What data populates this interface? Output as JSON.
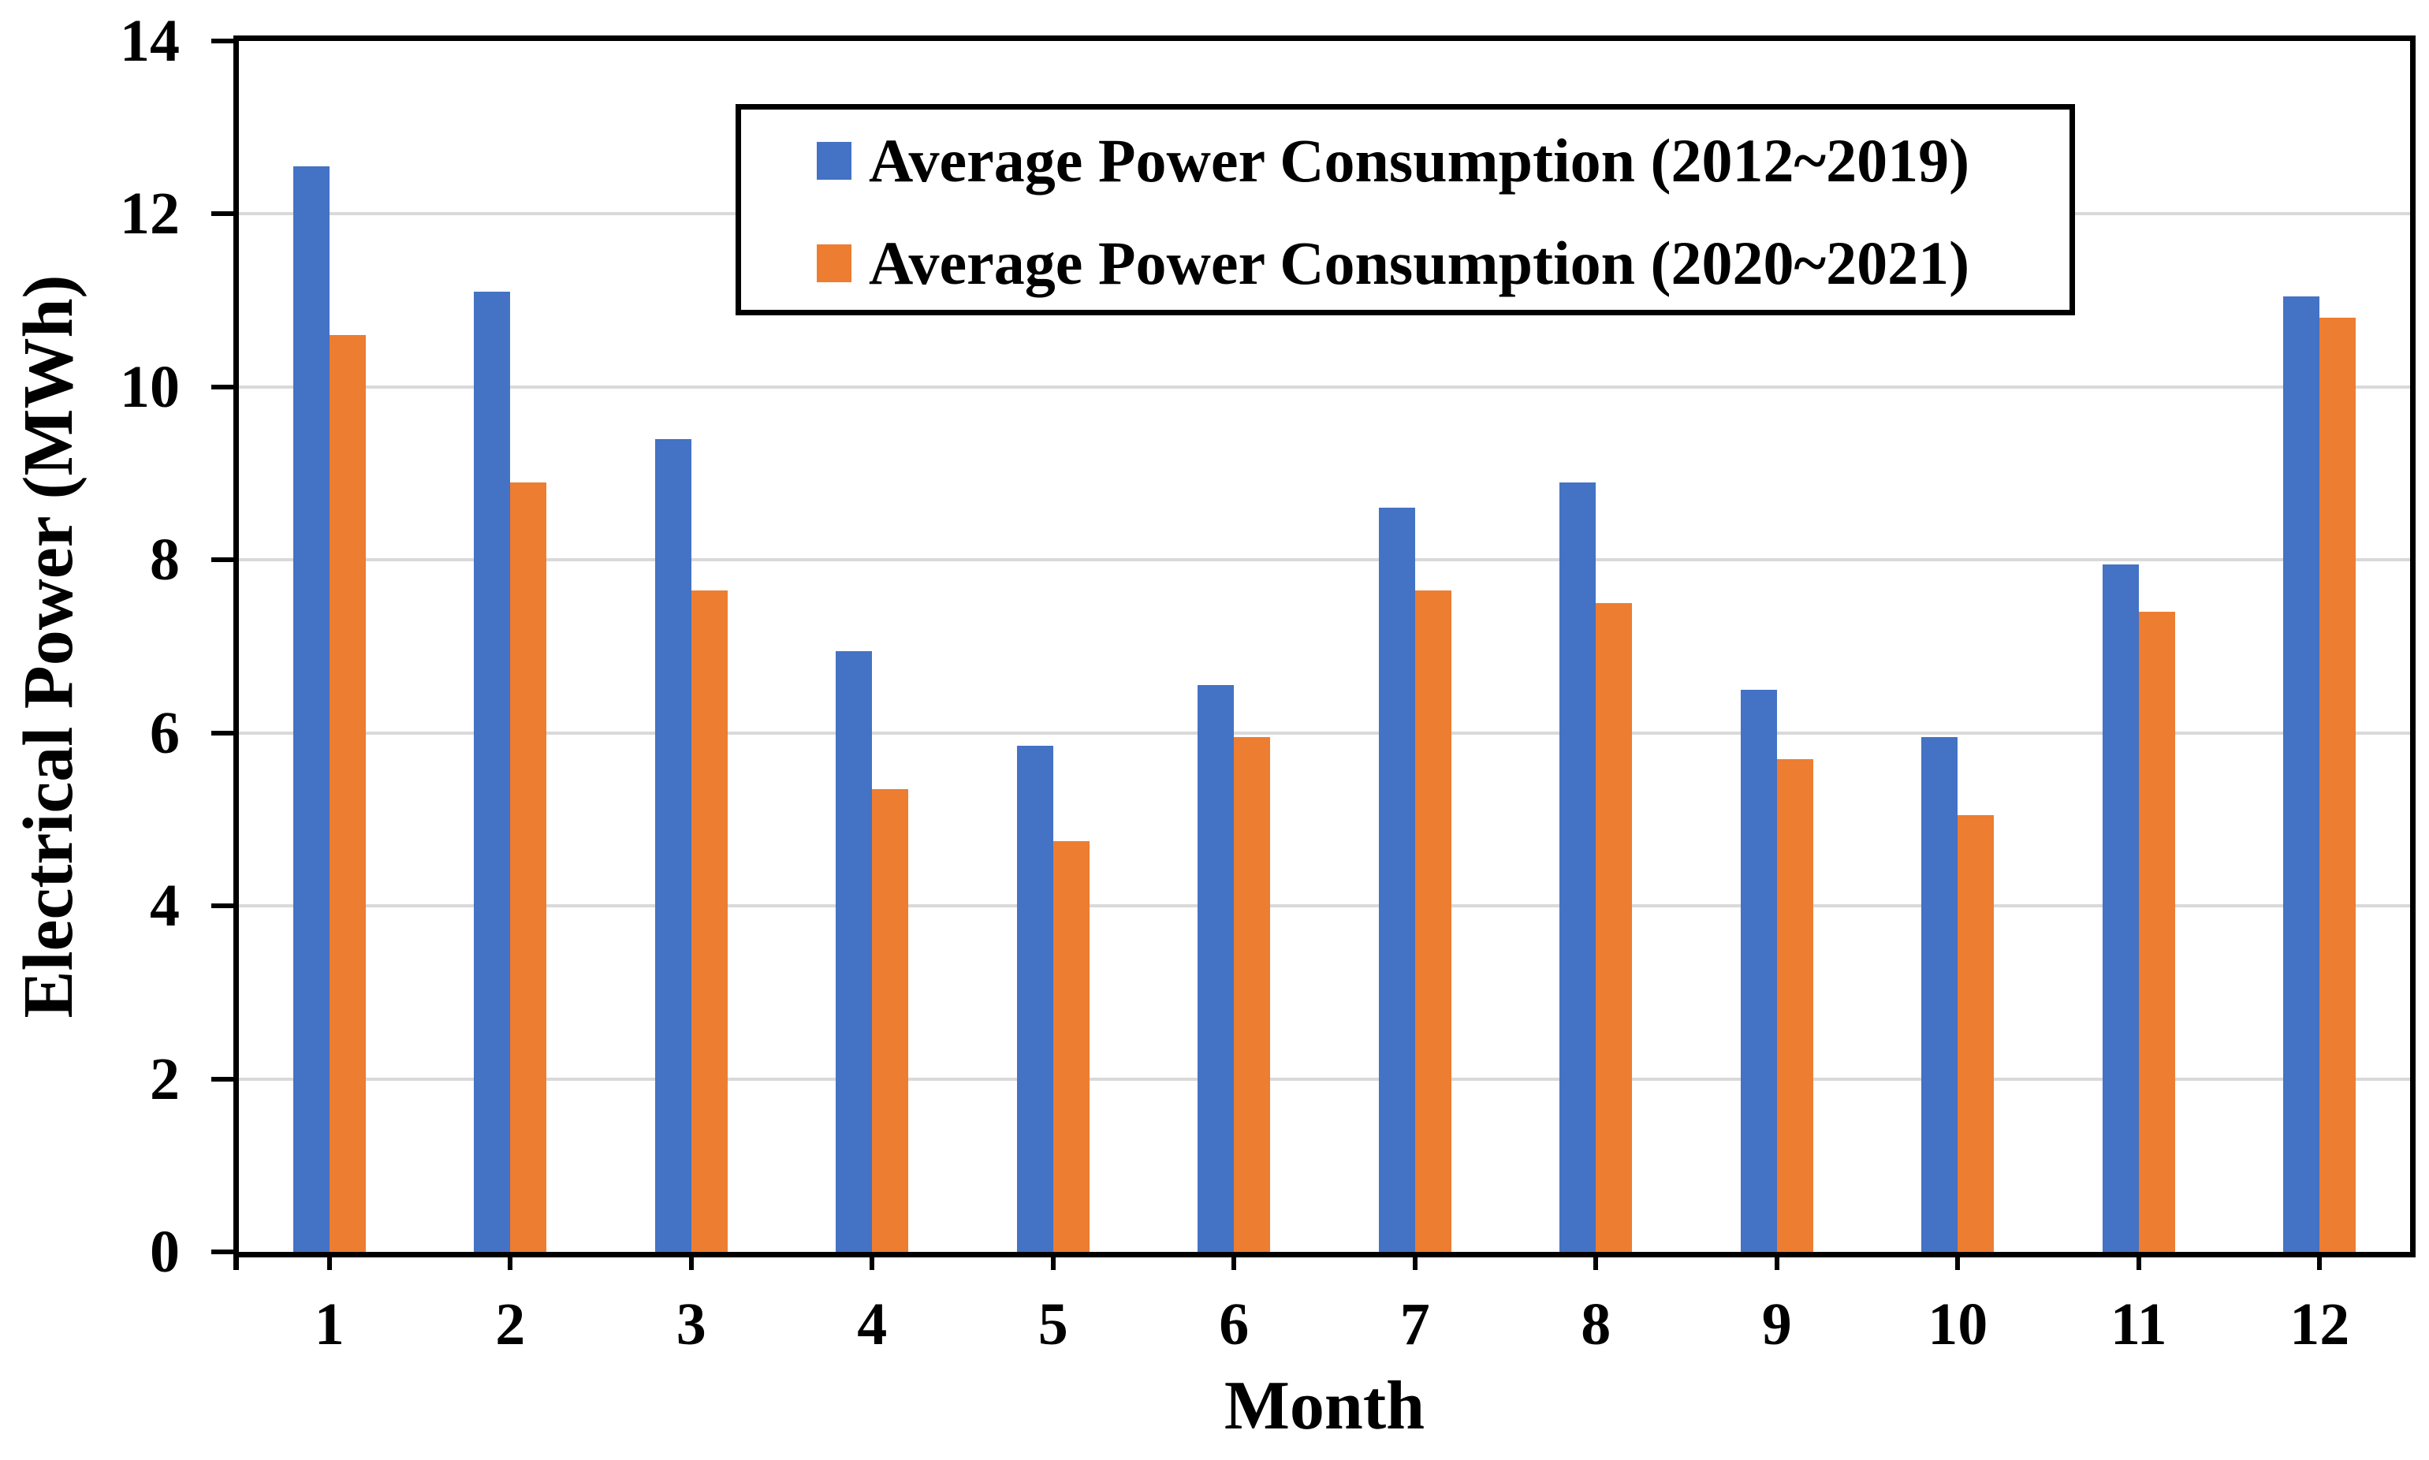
{
  "chart_data": {
    "type": "bar",
    "title": "",
    "xlabel": "Month",
    "ylabel": "Electrical Power (MWh)",
    "categories": [
      "1",
      "2",
      "3",
      "4",
      "5",
      "6",
      "7",
      "8",
      "9",
      "10",
      "11",
      "12"
    ],
    "series": [
      {
        "name": "Average Power Consumption (2012~2019)",
        "color": "#4472C4",
        "values": [
          12.55,
          11.1,
          9.4,
          6.95,
          5.85,
          6.55,
          8.6,
          8.9,
          6.5,
          5.95,
          7.95,
          11.05
        ]
      },
      {
        "name": "Average Power Consumption (2020~2021)",
        "color": "#ED7D31",
        "values": [
          10.6,
          8.9,
          7.65,
          5.35,
          4.75,
          5.95,
          7.65,
          7.5,
          5.7,
          5.05,
          7.4,
          10.8
        ]
      }
    ],
    "ylim": [
      0,
      14
    ],
    "yticks": [
      0,
      2,
      4,
      6,
      8,
      10,
      12,
      14
    ],
    "grid": "horizontal",
    "gridline_color": "#D9D9D9",
    "axis_color": "#000000",
    "background_color": "#FFFFFF",
    "legend_position": "inside-top-center",
    "legend_border": true
  }
}
